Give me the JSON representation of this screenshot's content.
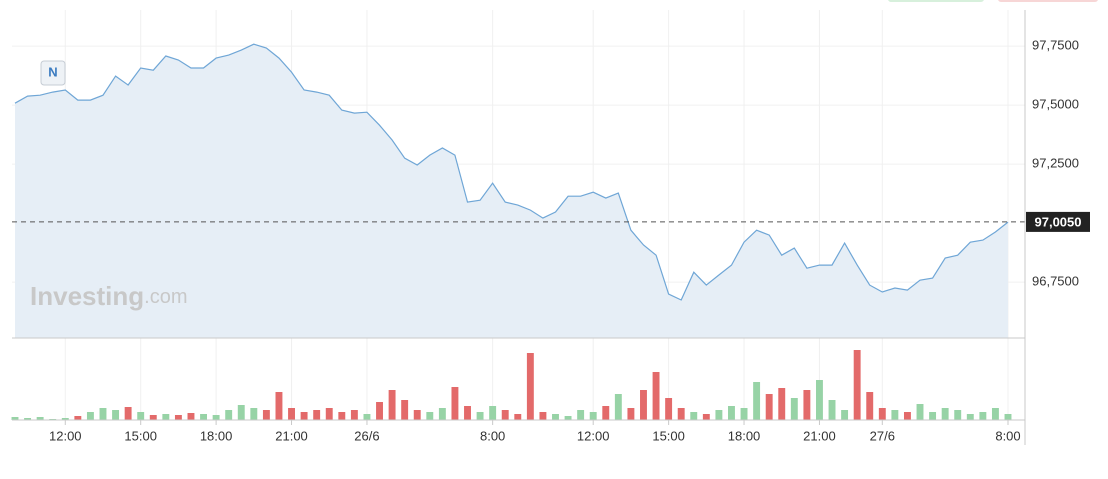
{
  "chart_data": {
    "type": "area",
    "badge": "N",
    "watermark": [
      "Investing",
      ".com"
    ],
    "categories": [
      null,
      null,
      null,
      null,
      "12:00",
      null,
      null,
      null,
      null,
      null,
      "15:00",
      null,
      null,
      null,
      null,
      null,
      "18:00",
      null,
      null,
      null,
      null,
      null,
      "21:00",
      null,
      null,
      null,
      null,
      null,
      "26/6",
      null,
      null,
      null,
      null,
      null,
      null,
      null,
      null,
      null,
      "8:00",
      null,
      null,
      null,
      null,
      null,
      null,
      null,
      "12:00",
      null,
      null,
      null,
      null,
      null,
      "15:00",
      null,
      null,
      null,
      null,
      null,
      "18:00",
      null,
      null,
      null,
      null,
      null,
      "21:00",
      null,
      null,
      null,
      null,
      "27/6",
      null,
      null,
      null,
      null,
      null,
      null,
      null,
      null,
      null,
      "8:00"
    ],
    "values": [
      97.508,
      97.538,
      97.542,
      97.555,
      97.564,
      97.521,
      97.521,
      97.542,
      97.623,
      97.585,
      97.657,
      97.648,
      97.708,
      97.691,
      97.657,
      97.657,
      97.699,
      97.712,
      97.733,
      97.758,
      97.742,
      97.699,
      97.64,
      97.564,
      97.555,
      97.542,
      97.479,
      97.466,
      97.47,
      97.415,
      97.352,
      97.275,
      97.246,
      97.288,
      97.318,
      97.288,
      97.089,
      97.097,
      97.169,
      97.089,
      97.076,
      97.055,
      97.021,
      97.047,
      97.114,
      97.114,
      97.131,
      97.106,
      97.127,
      96.97,
      96.907,
      96.864,
      96.699,
      96.674,
      96.792,
      96.737,
      96.78,
      96.822,
      96.919,
      96.97,
      96.949,
      96.864,
      96.894,
      96.809,
      96.822,
      96.822,
      96.915,
      96.822,
      96.737,
      96.708,
      96.725,
      96.716,
      96.758,
      96.767,
      96.852,
      96.864,
      96.919,
      96.928,
      96.962,
      97.004
    ],
    "color": "#6fa6d6",
    "fill": "#e6eef6",
    "ylim": [
      96.513,
      97.903
    ],
    "yticks": [
      {
        "value": 96.75,
        "label": "96,7500"
      },
      {
        "value": 97.25,
        "label": "97,2500"
      },
      {
        "value": 97.5,
        "label": "97,5000"
      },
      {
        "value": 97.75,
        "label": "97,7500"
      }
    ],
    "grid": true,
    "last_price": {
      "value": 97.005,
      "label": "97,0050"
    },
    "volume": {
      "type": "bar",
      "values": [
        3,
        2,
        3,
        1,
        2,
        4,
        8,
        12,
        10,
        13,
        8,
        5,
        6,
        5,
        7,
        6,
        5,
        10,
        15,
        12,
        10,
        28,
        12,
        8,
        10,
        12,
        8,
        10,
        6,
        18,
        30,
        20,
        10,
        8,
        12,
        33,
        14,
        8,
        14,
        10,
        6,
        67,
        8,
        6,
        4,
        10,
        8,
        14,
        26,
        12,
        30,
        48,
        22,
        12,
        8,
        6,
        10,
        14,
        12,
        38,
        26,
        32,
        22,
        30,
        40,
        20,
        10,
        70,
        28,
        12,
        10,
        8,
        16,
        8,
        12,
        10,
        6,
        8,
        12,
        6
      ],
      "ylim": [
        0,
        72
      ],
      "up_color": "#97d3a6",
      "down_color": "#e36a6a"
    }
  }
}
